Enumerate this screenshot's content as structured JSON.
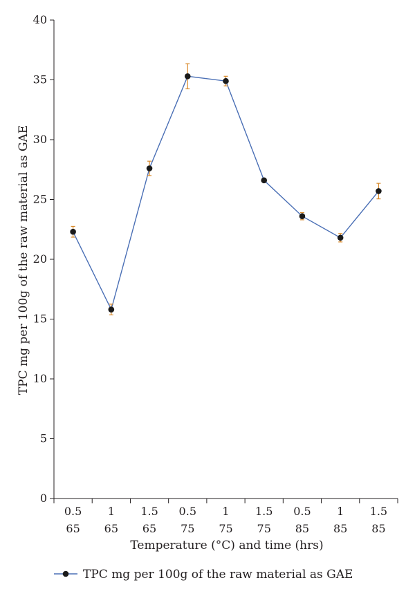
{
  "chart_data": {
    "type": "line",
    "title": "",
    "xlabel": "Temperature (°C) and time (hrs)",
    "ylabel": "TPC mg per 100g of the raw material as GAE",
    "ylim": [
      0,
      40
    ],
    "yticks": [
      "0",
      "5",
      "10",
      "15",
      "20",
      "25",
      "30",
      "35",
      "40"
    ],
    "categories": [
      {
        "time": "0.5",
        "temp": "65"
      },
      {
        "time": "1",
        "temp": "65"
      },
      {
        "time": "1.5",
        "temp": "65"
      },
      {
        "time": "0.5",
        "temp": "75"
      },
      {
        "time": "1",
        "temp": "75"
      },
      {
        "time": "1.5",
        "temp": "75"
      },
      {
        "time": "0.5",
        "temp": "85"
      },
      {
        "time": "1",
        "temp": "85"
      },
      {
        "time": "1.5",
        "temp": "85"
      }
    ],
    "series": [
      {
        "name": "TPC mg per 100g of the raw material as GAE",
        "values": [
          22.3,
          15.8,
          27.6,
          35.3,
          34.9,
          26.6,
          23.6,
          21.8,
          25.7
        ],
        "errors": [
          0.45,
          0.45,
          0.6,
          1.05,
          0.4,
          0.12,
          0.3,
          0.35,
          0.65
        ],
        "line_color": "#4a6fb5",
        "marker_color": "#1a1a1a",
        "error_color": "#d98a2b"
      }
    ],
    "grid": false,
    "legend_position": "bottom-left"
  }
}
